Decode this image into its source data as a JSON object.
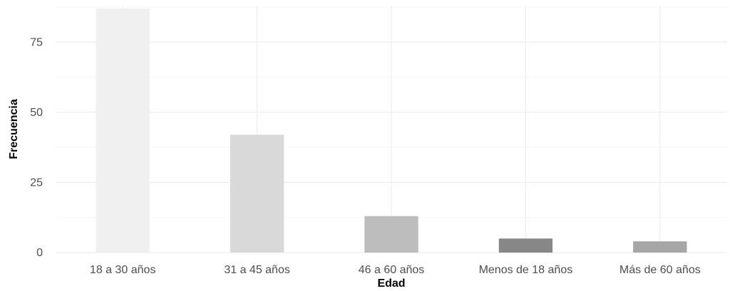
{
  "chart_data": {
    "type": "bar",
    "title": "",
    "xlabel": "Edad",
    "ylabel": "Frecuencia",
    "categories": [
      "18 a 30 años",
      "31 a 45 años",
      "46 a 60 años",
      "Menos de 18 años",
      "Más de 60 años"
    ],
    "values": [
      87,
      42,
      13,
      5,
      4
    ],
    "colors": [
      "#f0f0f0",
      "#d9d9d9",
      "#bdbdbd",
      "#878787",
      "#a6a6a6"
    ],
    "ylim": [
      0,
      88
    ],
    "yticks": [
      0,
      25,
      50,
      75
    ],
    "grid": true,
    "legend": "none"
  }
}
